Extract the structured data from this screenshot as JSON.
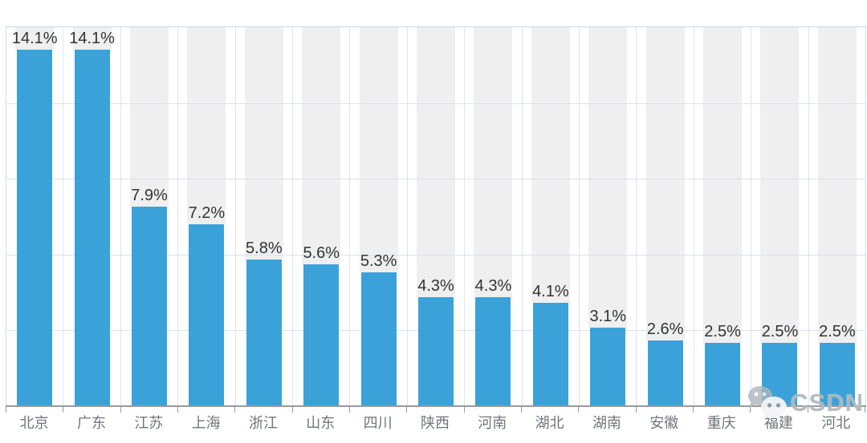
{
  "chart_data": {
    "type": "bar",
    "categories": [
      "北京",
      "广东",
      "江苏",
      "上海",
      "浙江",
      "山东",
      "四川",
      "陕西",
      "河南",
      "湖北",
      "湖南",
      "安徽",
      "重庆",
      "福建",
      "河北"
    ],
    "values": [
      14.1,
      14.1,
      7.9,
      7.2,
      5.8,
      5.6,
      5.3,
      4.3,
      4.3,
      4.1,
      3.1,
      2.6,
      2.5,
      2.5,
      2.5
    ],
    "value_labels": [
      "14.1%",
      "14.1%",
      "7.9%",
      "7.2%",
      "5.8%",
      "5.6%",
      "5.3%",
      "4.3%",
      "4.3%",
      "4.1%",
      "3.1%",
      "2.6%",
      "2.5%",
      "2.5%",
      "2.5%"
    ],
    "title": "",
    "xlabel": "",
    "ylabel": "",
    "ylim": [
      0,
      15
    ],
    "grid_interval": 3,
    "grid": true,
    "legend": false,
    "bar_background_bands": true
  },
  "colors": {
    "bar": "#3aa2d9",
    "background_band": "#efefef",
    "h_gridline": "#d9e2f0",
    "v_gridline": "#dfe5ee",
    "plot_border": "#c8d4e6",
    "axis_line": "#98999b",
    "value_label": "#323335",
    "category_label": "#707579",
    "background": "#ffffff"
  },
  "watermark": {
    "text": "CSDN",
    "icon": "wechat-bubbles-icon"
  }
}
